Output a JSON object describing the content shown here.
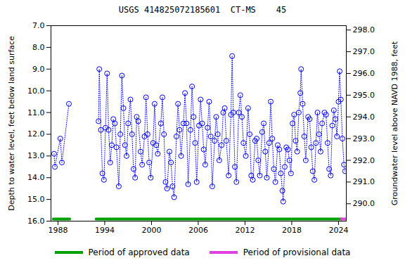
{
  "chart_data": {
    "type": "line",
    "title": "USGS 414825072185601  CT-MS    45",
    "y_label": "Depth to water level, feet below land surface",
    "y2_label": "Groundwater level above NAVD 1988, feet",
    "xlim": [
      1987.1,
      2025.0
    ],
    "xticks": [
      1988,
      1994,
      2000,
      2006,
      2012,
      2018,
      2024
    ],
    "ylim": [
      16,
      7
    ],
    "yticks": [
      {
        "value": 7,
        "label": "7.0"
      },
      {
        "value": 8,
        "label": "8.0"
      },
      {
        "value": 9,
        "label": "9.0"
      },
      {
        "value": 10,
        "label": "10.0"
      },
      {
        "value": 11,
        "label": "11.0"
      },
      {
        "value": 12,
        "label": "12.0"
      },
      {
        "value": 13,
        "label": "13.0"
      },
      {
        "value": 14,
        "label": "14.0"
      },
      {
        "value": 15,
        "label": "15.0"
      },
      {
        "value": 16,
        "label": "16.0"
      }
    ],
    "y2lim": [
      289.2,
      298.2
    ],
    "y2ticks": [
      {
        "value": 290,
        "label": "290.0"
      },
      {
        "value": 291,
        "label": "291.0"
      },
      {
        "value": 292,
        "label": "292.0"
      },
      {
        "value": 293,
        "label": "293.0"
      },
      {
        "value": 294,
        "label": "294.0"
      },
      {
        "value": 295,
        "label": "295.0"
      },
      {
        "value": 296,
        "label": "296.0"
      },
      {
        "value": 297,
        "label": "297.0"
      },
      {
        "value": 298,
        "label": "298.0"
      }
    ],
    "grid": false,
    "x": [
      1987.5,
      1987.6,
      1988.3,
      1988.5,
      1989.4,
      1991.0,
      1993.2,
      1993.3,
      1993.5,
      1993.7,
      1993.9,
      1994.1,
      1994.3,
      1994.5,
      1994.7,
      1994.9,
      1995.1,
      1995.3,
      1995.5,
      1995.8,
      1996.0,
      1996.2,
      1996.4,
      1996.6,
      1996.8,
      1997.0,
      1997.3,
      1997.5,
      1997.7,
      1997.9,
      1998.1,
      1998.3,
      1998.6,
      1998.8,
      1999.1,
      1999.3,
      1999.5,
      1999.7,
      1999.9,
      2000.2,
      2000.4,
      2000.6,
      2000.8,
      2001.2,
      2001.4,
      2001.6,
      2001.8,
      2002.0,
      2002.3,
      2002.5,
      2002.7,
      2002.9,
      2003.2,
      2003.4,
      2003.6,
      2003.8,
      2004.1,
      2004.3,
      2004.5,
      2004.7,
      2005.0,
      2005.2,
      2005.4,
      2005.6,
      2005.8,
      2006.1,
      2006.3,
      2006.5,
      2006.7,
      2006.9,
      2007.2,
      2007.4,
      2007.6,
      2007.8,
      2008.1,
      2008.3,
      2008.5,
      2008.7,
      2009.0,
      2009.2,
      2009.4,
      2009.6,
      2009.9,
      2010.2,
      2010.35,
      2010.5,
      2010.7,
      2010.9,
      2011.2,
      2011.4,
      2011.6,
      2011.8,
      2012.1,
      2012.4,
      2012.6,
      2012.8,
      2013.0,
      2013.3,
      2013.5,
      2013.7,
      2013.9,
      2014.2,
      2014.4,
      2014.6,
      2014.8,
      2015.1,
      2015.3,
      2015.5,
      2015.7,
      2015.9,
      2016.2,
      2016.4,
      2016.6,
      2016.8,
      2016.9,
      2017.1,
      2017.3,
      2017.5,
      2017.7,
      2017.9,
      2018.1,
      2018.3,
      2018.5,
      2018.7,
      2018.9,
      2019.1,
      2019.2,
      2019.4,
      2019.6,
      2019.8,
      2020.1,
      2020.3,
      2020.5,
      2020.7,
      2020.9,
      2021.1,
      2021.3,
      2021.5,
      2021.7,
      2021.9,
      2022.2,
      2022.4,
      2022.6,
      2022.8,
      2023.0,
      2023.2,
      2023.4,
      2023.6,
      2023.8,
      2024.0,
      2024.15,
      2024.3,
      2024.5,
      2024.7,
      2024.85
    ],
    "series": [
      {
        "color": "#0000ff",
        "marker": "circle",
        "line_style": "dotted",
        "values": [
          12.9,
          13.5,
          12.2,
          13.3,
          10.6,
          null,
          11.4,
          9.0,
          11.8,
          13.8,
          14.1,
          11.7,
          9.2,
          11.8,
          13.3,
          12.5,
          11.3,
          11.5,
          12.6,
          14.4,
          12.0,
          9.3,
          10.8,
          12.5,
          13.0,
          11.5,
          10.4,
          12.0,
          13.6,
          14.0,
          11.2,
          11.4,
          12.8,
          13.4,
          12.1,
          10.3,
          12.0,
          13.3,
          14.0,
          12.4,
          10.6,
          12.5,
          12.9,
          11.5,
          10.3,
          12.0,
          14.2,
          14.5,
          12.8,
          13.3,
          14.4,
          14.9,
          12.1,
          10.6,
          11.8,
          13.0,
          11.5,
          10.1,
          11.5,
          14.3,
          11.8,
          9.8,
          11.2,
          12.4,
          14.2,
          11.6,
          10.4,
          11.5,
          12.7,
          13.4,
          11.7,
          10.5,
          12.1,
          14.4,
          12.3,
          11.2,
          12.0,
          13.2,
          12.5,
          11.0,
          10.8,
          12.3,
          13.9,
          11.1,
          8.4,
          11.0,
          13.5,
          14.2,
          11.0,
          10.2,
          11.2,
          12.4,
          13.0,
          10.8,
          12.0,
          13.9,
          14.1,
          12.3,
          12.2,
          13.2,
          13.9,
          11.9,
          11.5,
          12.8,
          14.0,
          12.4,
          10.5,
          12.2,
          13.6,
          14.2,
          12.5,
          12.7,
          13.8,
          14.6,
          15.1,
          13.5,
          12.6,
          12.7,
          13.2,
          13.8,
          11.5,
          11.1,
          12.3,
          12.8,
          11.0,
          10.1,
          9.0,
          10.6,
          12.1,
          13.2,
          11.2,
          11.3,
          12.6,
          13.7,
          14.1,
          12.4,
          11.0,
          12.0,
          12.8,
          11.5,
          11.0,
          11.1,
          12.4,
          13.6,
          13.9,
          11.6,
          10.9,
          11.3,
          12.1,
          10.5,
          9.1,
          10.4,
          12.2,
          13.4,
          13.7
        ]
      }
    ],
    "periods": [
      {
        "name": "Period of approved data",
        "color": "#00a000",
        "ranges": [
          [
            1987.4,
            1989.5
          ],
          [
            1992.9,
            2024.4
          ]
        ]
      },
      {
        "name": "Period of provisional data",
        "color": "#e040e0",
        "ranges": [
          [
            2024.4,
            2025.0
          ]
        ]
      }
    ],
    "legend": "bottom"
  }
}
